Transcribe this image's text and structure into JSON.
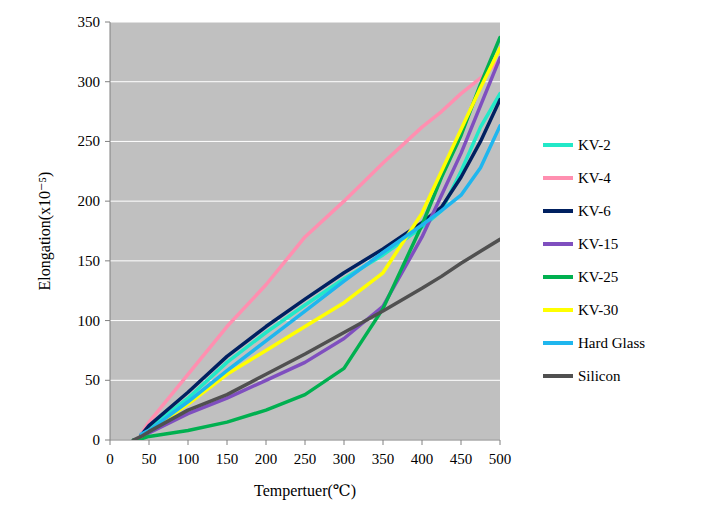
{
  "chart_data": {
    "type": "line",
    "x_label": "Tempertuer(℃)",
    "y_label": "Elongation(x10⁻⁵)",
    "x": [
      30,
      40,
      50,
      100,
      150,
      200,
      250,
      300,
      350,
      400,
      425,
      450,
      475,
      500
    ],
    "xlim": [
      0,
      500
    ],
    "xticks": [
      0,
      50,
      100,
      150,
      200,
      250,
      300,
      350,
      400,
      450,
      500
    ],
    "ylim": [
      0,
      350
    ],
    "yticks": [
      0,
      50,
      100,
      150,
      200,
      250,
      300,
      350
    ],
    "grid": true,
    "legend": "right",
    "series": [
      {
        "name": "KV-2",
        "color": "#22e8c8",
        "values": [
          null,
          4,
          10,
          35,
          65,
          90,
          113,
          135,
          155,
          178,
          192,
          225,
          262,
          290
        ]
      },
      {
        "name": "KV-4",
        "color": "#ff8fb0",
        "values": [
          null,
          5,
          15,
          55,
          95,
          130,
          170,
          200,
          232,
          262,
          275,
          290,
          303,
          318
        ]
      },
      {
        "name": "KV-6",
        "color": "#002060",
        "values": [
          null,
          4,
          12,
          40,
          70,
          95,
          118,
          140,
          160,
          182,
          195,
          220,
          250,
          285
        ]
      },
      {
        "name": "KV-15",
        "color": "#7f4fbf",
        "values": [
          null,
          3,
          6,
          22,
          35,
          50,
          65,
          85,
          112,
          170,
          205,
          240,
          280,
          320
        ]
      },
      {
        "name": "KV-25",
        "color": "#00b050",
        "values": [
          0,
          1,
          3,
          8,
          15,
          25,
          38,
          60,
          110,
          180,
          220,
          255,
          298,
          337
        ]
      },
      {
        "name": "KV-30",
        "color": "#ffff00",
        "values": [
          null,
          3,
          8,
          30,
          55,
          75,
          95,
          115,
          140,
          190,
          225,
          260,
          295,
          328
        ]
      },
      {
        "name": "Hard Glass",
        "color": "#1fb6ee",
        "values": [
          null,
          5,
          8,
          32,
          58,
          83,
          108,
          133,
          157,
          180,
          192,
          205,
          228,
          263
        ]
      },
      {
        "name": "Silicon",
        "color": "#505050",
        "values": [
          0,
          3,
          7,
          25,
          38,
          55,
          72,
          90,
          108,
          127,
          137,
          148,
          158,
          168
        ]
      }
    ]
  }
}
